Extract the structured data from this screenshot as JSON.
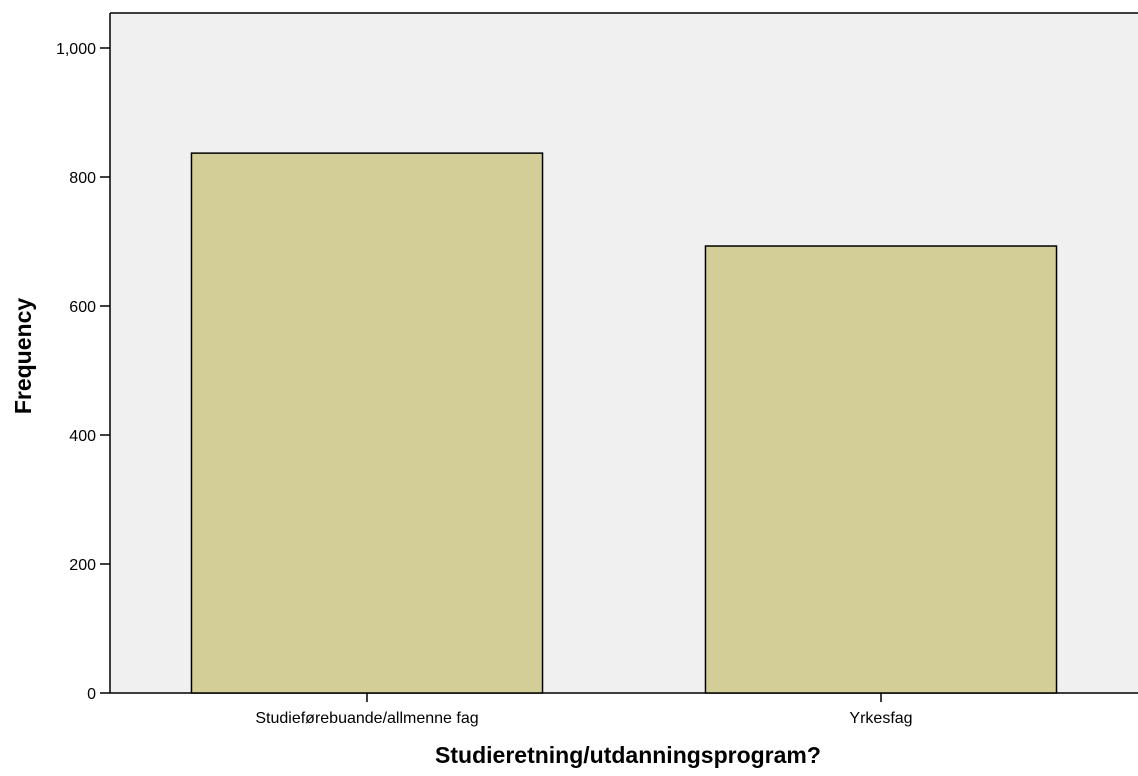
{
  "chart_data": {
    "type": "bar",
    "title": "",
    "xlabel": "Studieretning/utdanningsprogram?",
    "ylabel": "Frequency",
    "categories": [
      "Studieførebuande/allmenne fag",
      "Yrkesfag"
    ],
    "values": [
      837,
      693
    ],
    "ylim": [
      0,
      1000
    ],
    "yticks": [
      0,
      200,
      400,
      600,
      800,
      1000
    ],
    "ytick_labels": [
      "0",
      "200",
      "400",
      "600",
      "800",
      "1,000"
    ],
    "grid": false,
    "legend": "none",
    "colors": {
      "bar_fill": "#d3ce97",
      "bar_stroke": "#000000",
      "plot_background": "#f0f0f0",
      "axis": "#000000"
    }
  }
}
